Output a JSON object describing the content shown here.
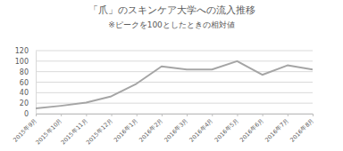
{
  "chart_data": {
    "type": "line",
    "title": "「爪」のスキンケア大学への流入推移",
    "subtitle": "※ピークを100としたときの相対値",
    "categories": [
      "2015年9月",
      "2015年10月",
      "2015年11月",
      "2015年12月",
      "2016年1月",
      "2016年2月",
      "2016年3月",
      "2016年4月",
      "2016年5月",
      "2016年6月",
      "2016年7月",
      "2016年8月"
    ],
    "values": [
      10,
      15,
      21,
      33,
      57,
      90,
      84,
      84,
      100,
      74,
      92,
      84
    ],
    "color": "#a5a5a5",
    "ylim": [
      0,
      120
    ],
    "yticks": [
      0,
      20,
      40,
      60,
      80,
      100,
      120
    ],
    "grid": true
  }
}
